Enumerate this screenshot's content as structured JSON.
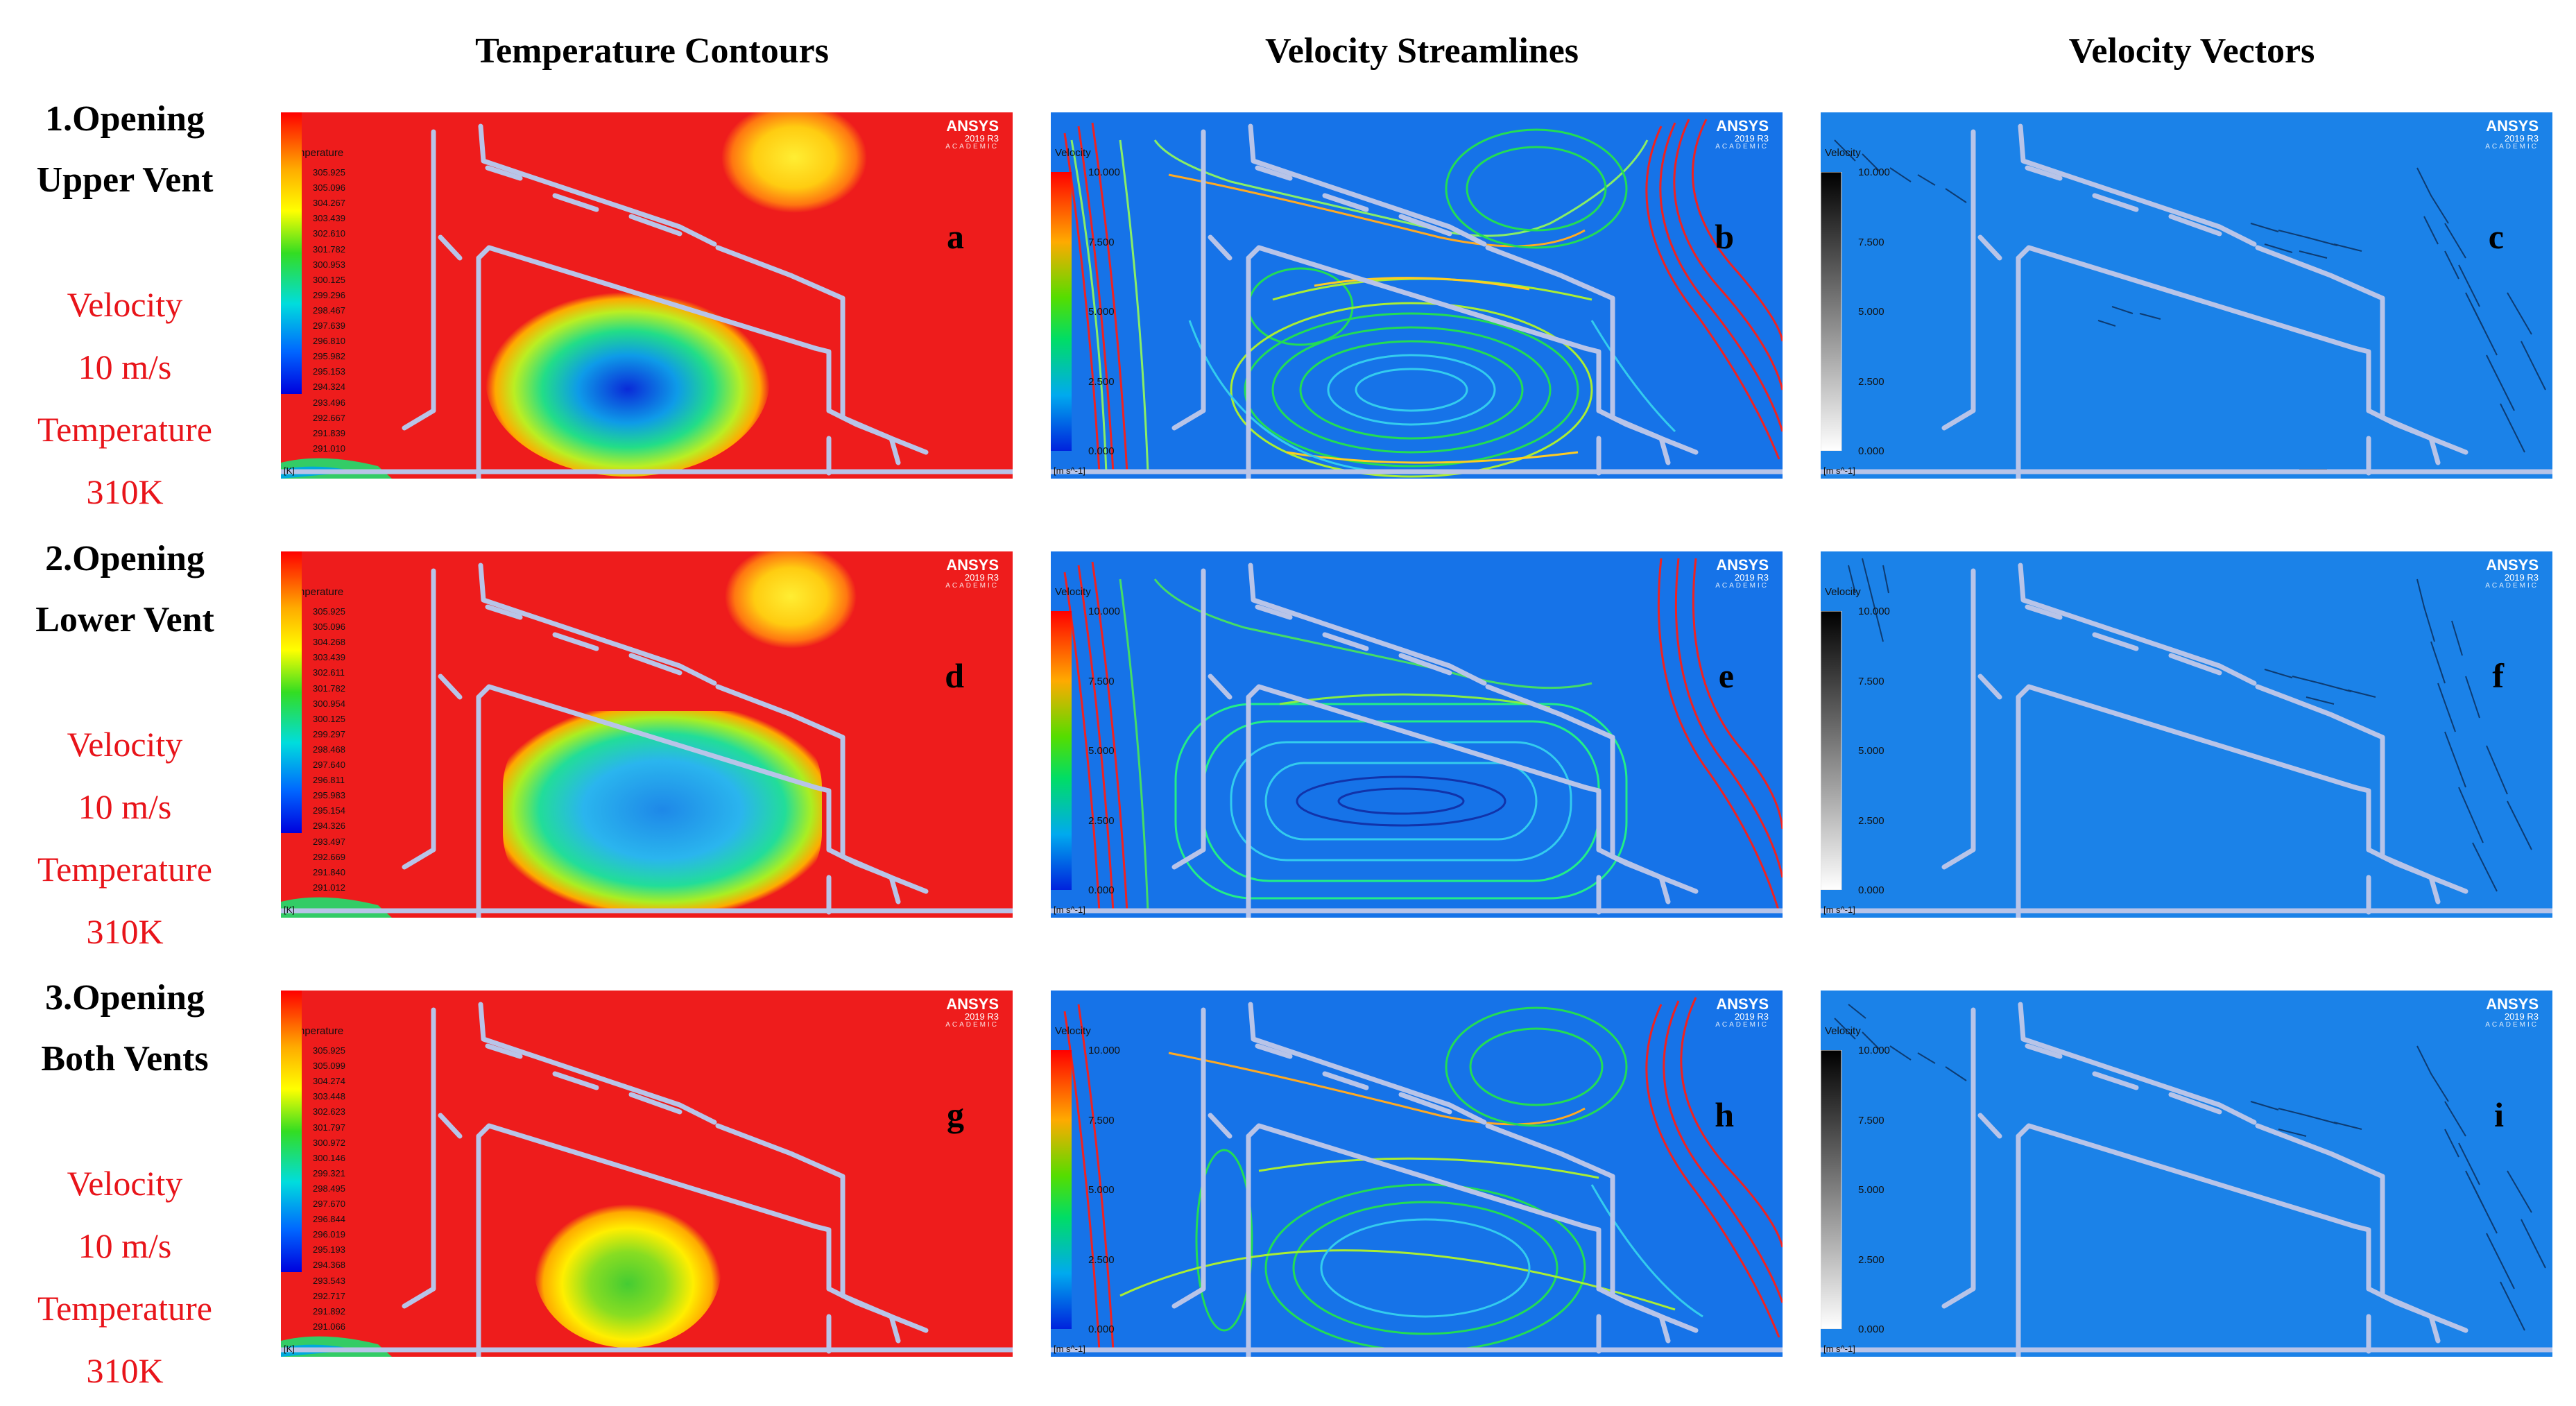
{
  "columns": [
    "Temperature Contours",
    "Velocity Streamlines",
    "Velocity Vectors"
  ],
  "rows": [
    {
      "title_line1": "1.Opening",
      "title_line2": "Upper Vent",
      "param1": "Velocity",
      "param2": "10 m/s",
      "param3": "Temperature",
      "param4": "310K"
    },
    {
      "title_line1": "2.Opening",
      "title_line2": "Lower Vent",
      "param1": "Velocity",
      "param2": "10 m/s",
      "param3": "Temperature",
      "param4": "310K"
    },
    {
      "title_line1": "3.Opening",
      "title_line2": "Both Vents",
      "param1": "Velocity",
      "param2": "10 m/s",
      "param3": "Temperature",
      "param4": "310K"
    }
  ],
  "watermark": {
    "brand": "ANSYS",
    "version": "2019 R3",
    "edition": "ACADEMIC"
  },
  "temperature_legend": {
    "title": "Temperature",
    "unit": "[K]",
    "ticks_a": [
      "305.925",
      "305.096",
      "304.267",
      "303.439",
      "302.610",
      "301.782",
      "300.953",
      "300.125",
      "299.296",
      "298.467",
      "297.639",
      "296.810",
      "295.982",
      "295.153",
      "294.324",
      "293.496",
      "292.667",
      "291.839",
      "291.010"
    ],
    "ticks_d": [
      "305.925",
      "305.096",
      "304.268",
      "303.439",
      "302.611",
      "301.782",
      "300.954",
      "300.125",
      "299.297",
      "298.468",
      "297.640",
      "296.811",
      "295.983",
      "295.154",
      "294.326",
      "293.497",
      "292.669",
      "291.840",
      "291.012"
    ],
    "ticks_g": [
      "305.925",
      "305.099",
      "304.274",
      "303.448",
      "302.623",
      "301.797",
      "300.972",
      "300.146",
      "299.321",
      "298.495",
      "297.670",
      "296.844",
      "296.019",
      "295.193",
      "294.368",
      "293.543",
      "292.717",
      "291.892",
      "291.066"
    ]
  },
  "velocity_legend": {
    "title": "Velocity",
    "unit": "[m s^-1]",
    "ticks": [
      "10.000",
      "7.500",
      "5.000",
      "2.500",
      "0.000"
    ]
  },
  "panels": [
    {
      "letter": "a"
    },
    {
      "letter": "b"
    },
    {
      "letter": "c"
    },
    {
      "letter": "d"
    },
    {
      "letter": "e"
    },
    {
      "letter": "f"
    },
    {
      "letter": "g"
    },
    {
      "letter": "h"
    },
    {
      "letter": "i"
    }
  ],
  "colors": {
    "hot": "#ee1c1c",
    "flow_bg": "#1673e8",
    "vector_bg": "#1b82e8",
    "param_text": "#e8141a"
  }
}
